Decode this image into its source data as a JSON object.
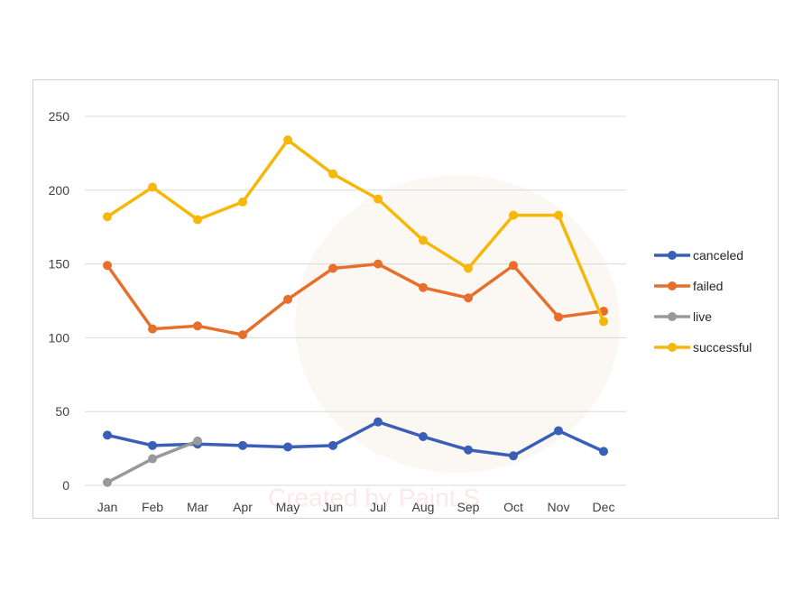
{
  "watermark": {
    "text": "Created by Paint S"
  },
  "chart_data": {
    "type": "line",
    "title": "",
    "xlabel": "",
    "ylabel": "",
    "categories": [
      "Jan",
      "Feb",
      "Mar",
      "Apr",
      "May",
      "Jun",
      "Jul",
      "Aug",
      "Sep",
      "Oct",
      "Nov",
      "Dec"
    ],
    "ylim": [
      0,
      250
    ],
    "yticks": [
      0,
      50,
      100,
      150,
      200,
      250
    ],
    "grid": true,
    "legend_position": "right",
    "series": [
      {
        "name": "canceled",
        "color": "#3a5fb8",
        "values": [
          34,
          27,
          28,
          27,
          26,
          27,
          43,
          33,
          24,
          20,
          37,
          23
        ]
      },
      {
        "name": "failed",
        "color": "#e76f2c",
        "values": [
          149,
          106,
          108,
          102,
          126,
          147,
          150,
          134,
          127,
          149,
          114,
          118
        ]
      },
      {
        "name": "live",
        "color": "#999999",
        "values": [
          2,
          18,
          30,
          null,
          null,
          null,
          null,
          null,
          null,
          null,
          null,
          null
        ]
      },
      {
        "name": "successful",
        "color": "#f5b80a",
        "values": [
          182,
          202,
          180,
          192,
          234,
          211,
          194,
          166,
          147,
          183,
          183,
          111
        ]
      }
    ]
  }
}
